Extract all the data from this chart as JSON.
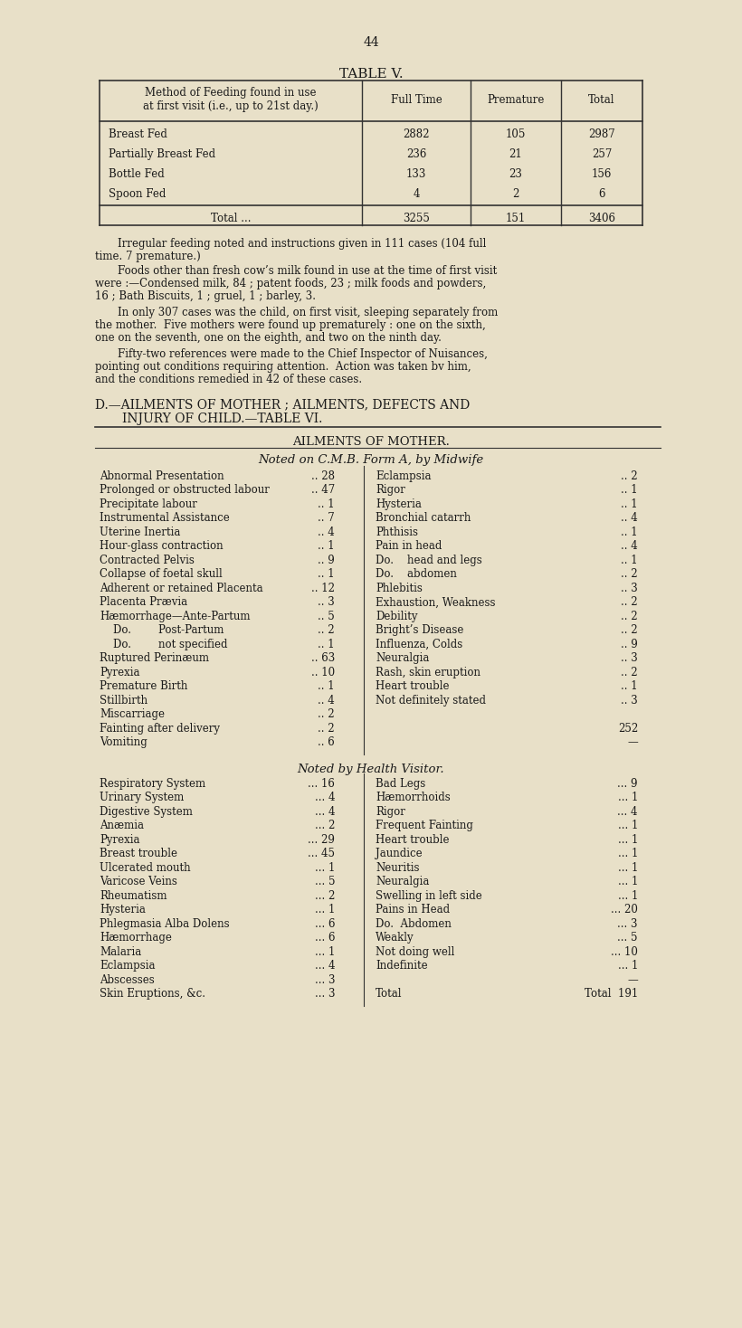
{
  "page_number": "44",
  "table_v_title": "TABLE V.",
  "table_v_header": [
    "Method of Feeding found in use\nat first visit (i.e., up to 21st day.)",
    "Full Time",
    "Premature",
    "Total"
  ],
  "table_v_rows": [
    [
      "Breast Fed",
      "2882",
      "105",
      "2987"
    ],
    [
      "Partially Breast Fed",
      "236",
      "21",
      "257"
    ],
    [
      "Bottle Fed",
      "133",
      "23",
      "156"
    ],
    [
      "Spoon Fed",
      "4",
      "2",
      "6"
    ]
  ],
  "table_v_total": [
    "Total",
    "3255",
    "151",
    "3406"
  ],
  "para1": "Irregular feeding noted and instructions given in 111 cases (104 full\ntime. 7 premature.)",
  "para2": "Foods other than fresh cow’s milk found in use at the time of first visit\nwere :—Condensed milk, 84 ; patent foods, 23 ; milk foods and powders,\n16 ; Bath Biscuits, 1 ; gruel, 1 ; barley, 3.",
  "para3": "In only 307 cases was the child, on first visit, sleeping separately from\nthe mother.  Five mothers were found up prematurely : one on the sixth,\none on the seventh, one on the eighth, and two on the ninth day.",
  "para4": "Fifty-two references were made to the Chief Inspector of Nuisances,\npointing out conditions requiring attention.  Action was taken bv him,\nand the conditions remedied in 42 of these cases.",
  "section_d_title": "D.—AILMENTS OF MOTHER ; AILMENTS, DEFECTS AND\nINJURY OF CHILD.—TABLE VI.",
  "ailments_header": "AILMENTS OF MOTHER.",
  "midwife_header": "Noted on C.M.B. Form A, by Midwife",
  "left_col": [
    [
      "Abnormal Presentation",
      "28"
    ],
    [
      "Prolonged or obstructed labour",
      "47"
    ],
    [
      "Precipitate labour",
      "1"
    ],
    [
      "Instrumental Assistance",
      "7"
    ],
    [
      "Uterine Inertia",
      "4"
    ],
    [
      "Hour-glass contraction",
      "1"
    ],
    [
      "Contracted Pelvis",
      "9"
    ],
    [
      "Collapse of foetal skull",
      "1"
    ],
    [
      "Adherent or retained Placenta",
      "12"
    ],
    [
      "Placenta Prævia",
      "3"
    ],
    [
      "Hæmorrhage—Ante-Partum",
      "5"
    ],
    [
      "    Do.        Post-Partum",
      "2"
    ],
    [
      "    Do.        not specified",
      "1"
    ],
    [
      "Ruptured Perinæum",
      "63"
    ],
    [
      "Pyrexia",
      "10"
    ],
    [
      "Premature Birth",
      "1"
    ],
    [
      "Stillbirth",
      "4"
    ],
    [
      "Miscarriage",
      "2"
    ],
    [
      "Fainting after delivery",
      "2"
    ],
    [
      "Vomiting",
      "6"
    ]
  ],
  "right_col": [
    [
      "Eclampsia",
      "2"
    ],
    [
      "Rigor",
      "1"
    ],
    [
      "Hysteria",
      "1"
    ],
    [
      "Bronchial catarrh",
      "4"
    ],
    [
      "Phthisis",
      "1"
    ],
    [
      "Pain in head",
      "4"
    ],
    [
      "Do.    head and legs",
      "1"
    ],
    [
      "Do.    abdomen",
      "2"
    ],
    [
      "Phlebitis",
      "3"
    ],
    [
      "Exhaustion, Weakness",
      "2"
    ],
    [
      "Debility",
      "2"
    ],
    [
      "Bright’s Disease",
      "2"
    ],
    [
      "Influenza, Colds",
      "9"
    ],
    [
      "Neuralgia",
      "3"
    ],
    [
      "Rash, skin eruption",
      "2"
    ],
    [
      "Heart trouble",
      "1"
    ],
    [
      "Not definitely stated",
      "3"
    ],
    [
      "",
      ""
    ],
    [
      "",
      "252"
    ],
    [
      "",
      "—"
    ]
  ],
  "health_visitor_header": "Noted by Health Visitor.",
  "hv_left_col": [
    [
      "Respiratory System",
      "16"
    ],
    [
      "Urinary System",
      "4"
    ],
    [
      "Digestive System",
      "4"
    ],
    [
      "Anæmia",
      "2"
    ],
    [
      "Pyrexia",
      "29"
    ],
    [
      "Breast trouble",
      "45"
    ],
    [
      "Ulcerated mouth",
      "1"
    ],
    [
      "Varicose Veins",
      "5"
    ],
    [
      "Rheumatism",
      "2"
    ],
    [
      "Hysteria",
      "1"
    ],
    [
      "Phlegmasia Alba Dolens",
      "6"
    ],
    [
      "Hæmorrhage",
      "6"
    ],
    [
      "Malaria",
      "1"
    ],
    [
      "Eclampsia",
      "4"
    ],
    [
      "Abscesses",
      "3"
    ],
    [
      "Skin Eruptions, &c.",
      "3"
    ]
  ],
  "hv_right_col": [
    [
      "Bad Legs",
      "9"
    ],
    [
      "Hæmorrhoids",
      "1"
    ],
    [
      "Rigor",
      "4"
    ],
    [
      "Frequent Fainting",
      "1"
    ],
    [
      "Heart trouble",
      "1"
    ],
    [
      "Jaundice",
      "1"
    ],
    [
      "Neuritis",
      "1"
    ],
    [
      "Neuralgia",
      "1"
    ],
    [
      "Swelling in left side",
      "1"
    ],
    [
      "Pains in Head",
      "20"
    ],
    [
      "Do.  Abdomen",
      "3"
    ],
    [
      "Weakly",
      "5"
    ],
    [
      "Not doing well",
      "10"
    ],
    [
      "Indefinite",
      "1"
    ],
    [
      "",
      "—"
    ],
    [
      "Total",
      "191"
    ]
  ],
  "bg_color": "#e8e0c8",
  "text_color": "#1a1a1a",
  "font_size": 9.5,
  "small_font": 8.5
}
